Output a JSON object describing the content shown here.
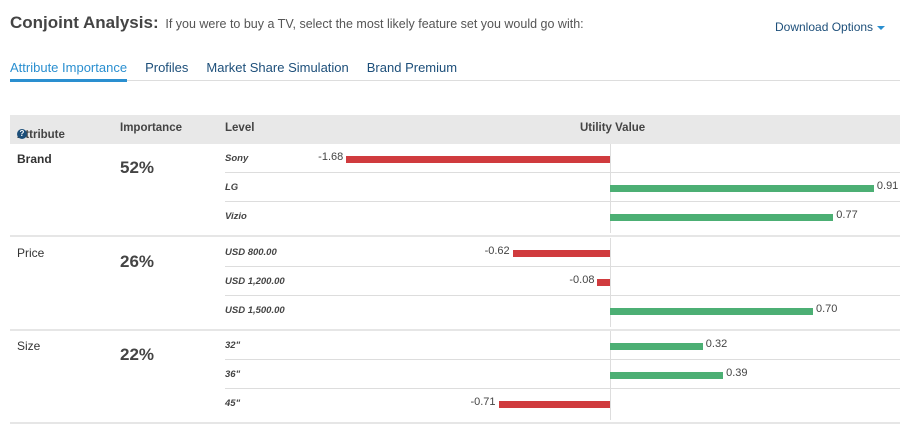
{
  "header": {
    "title": "Conjoint Analysis:",
    "subtitle": "If you were to buy a TV, select the most likely feature set you would go with:",
    "download": "Download Options"
  },
  "tabs": [
    {
      "label": "Attribute Importance",
      "active": true
    },
    {
      "label": "Profiles"
    },
    {
      "label": "Market Share Simulation"
    },
    {
      "label": "Brand Premium"
    }
  ],
  "table": {
    "columns": [
      "Attribute",
      "Importance",
      "Level",
      "Utility Value"
    ]
  },
  "colors": {
    "positive": "#4caf74",
    "negative": "#d03b3e",
    "accent": "#2a8fd0"
  },
  "chart_data": {
    "type": "bar",
    "orientation": "horizontal",
    "xlabel": "Utility Value",
    "groups": [
      {
        "attribute": "Brand",
        "importance": "52%",
        "levels": [
          {
            "name": "Sony",
            "value": -1.68,
            "label": "-1.68"
          },
          {
            "name": "LG",
            "value": 0.91,
            "label": "0.91"
          },
          {
            "name": "Vizio",
            "value": 0.77,
            "label": "0.77"
          }
        ]
      },
      {
        "attribute": "Price",
        "importance": "26%",
        "levels": [
          {
            "name": "USD 800.00",
            "value": -0.62,
            "label": "-0.62"
          },
          {
            "name": "USD 1,200.00",
            "value": -0.08,
            "label": "-0.08"
          },
          {
            "name": "USD 1,500.00",
            "value": 0.7,
            "label": "0.70"
          }
        ]
      },
      {
        "attribute": "Size",
        "importance": "22%",
        "levels": [
          {
            "name": "32\"",
            "value": 0.32,
            "label": "0.32"
          },
          {
            "name": "36\"",
            "value": 0.39,
            "label": "0.39"
          },
          {
            "name": "45\"",
            "value": -0.71,
            "label": "-0.71"
          }
        ]
      }
    ]
  }
}
